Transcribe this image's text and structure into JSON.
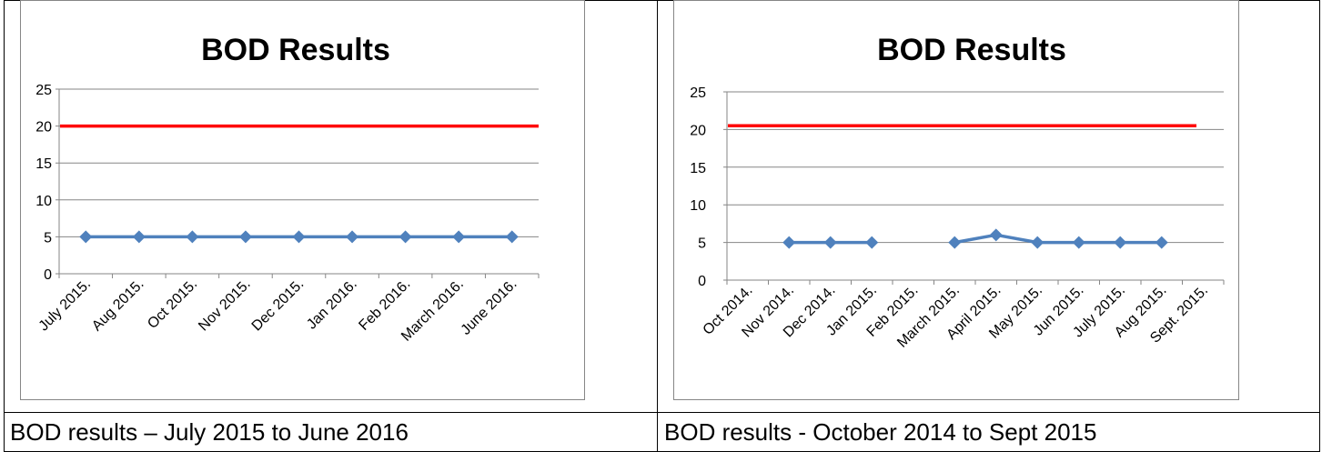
{
  "chart_data": [
    {
      "type": "line",
      "title": "BOD Results",
      "categories": [
        "July 2015.",
        "Aug 2015.",
        "Oct 2015.",
        "Nov 2015.",
        "Dec 2015.",
        "Jan 2016.",
        "Feb 2016.",
        "March 2016.",
        "June 2016."
      ],
      "series": [
        {
          "values": [
            5,
            5,
            5,
            5,
            5,
            5,
            5,
            5,
            5
          ],
          "color": "#4f81bd",
          "marker": "diamond"
        }
      ],
      "reference_line": {
        "value": 20,
        "color": "#ff0000"
      },
      "ylim": [
        0,
        25
      ],
      "yticks": [
        "0",
        "5",
        "10",
        "15",
        "20",
        "25"
      ],
      "grid": true,
      "xlabel": "",
      "ylabel": ""
    },
    {
      "type": "line",
      "title": "BOD Results",
      "categories": [
        "Oct 2014.",
        "Nov 2014.",
        "Dec 2014.",
        "Jan 2015.",
        "Feb 2015.",
        "March 2015.",
        "April 2015.",
        "May 2015.",
        "Jun 2015.",
        "July 2015.",
        "Aug 2015.",
        "Sept. 2015."
      ],
      "series": [
        {
          "values": [
            null,
            5,
            5,
            5,
            null,
            5,
            6,
            5,
            5,
            5,
            5,
            null
          ],
          "color": "#4f81bd",
          "marker": "diamond"
        }
      ],
      "reference_line": {
        "value": 20.5,
        "color": "#ff0000"
      },
      "ylim": [
        0,
        25
      ],
      "yticks": [
        "0",
        "5",
        "10",
        "15",
        "20",
        "25"
      ],
      "grid": true,
      "xlabel": "",
      "ylabel": ""
    }
  ],
  "captions": [
    "BOD results – July 2015 to June 2016",
    "BOD results - October 2014 to Sept 2015"
  ]
}
